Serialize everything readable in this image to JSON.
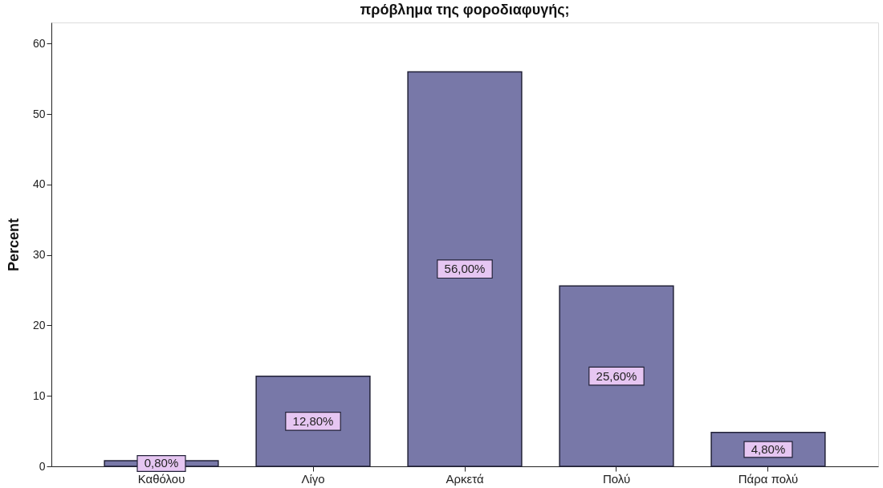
{
  "chart_data": {
    "type": "bar",
    "title": "πρόβλημα της φοροδιαφυγής;",
    "ylabel": "Percent",
    "categories": [
      "Καθόλου",
      "Λίγο",
      "Αρκετά",
      "Πολύ",
      "Πάρα πολύ"
    ],
    "values": [
      0.8,
      12.8,
      56,
      25.6,
      4.8
    ],
    "value_labels": [
      "0,80%",
      "12,80%",
      "56,00%",
      "25,60%",
      "4,80%"
    ],
    "color": "#7878a8",
    "ylim": [
      0,
      63
    ],
    "yticks": [
      0,
      10,
      20,
      30,
      40,
      50,
      60
    ]
  }
}
